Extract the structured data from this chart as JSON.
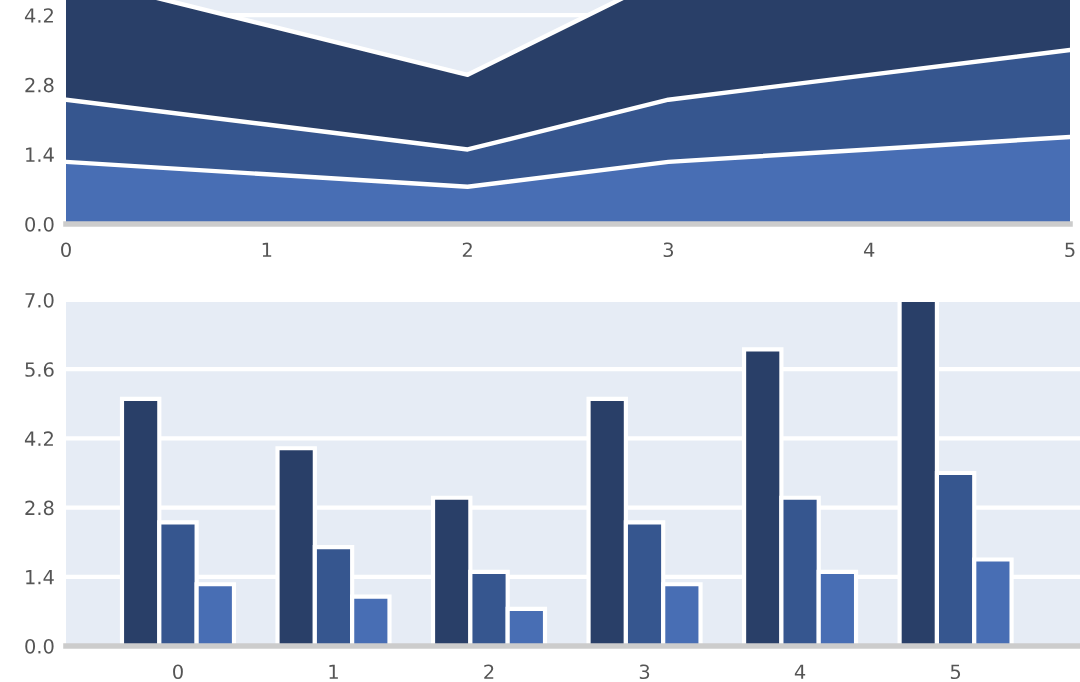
{
  "chart_data": [
    {
      "type": "area",
      "x": [
        0,
        1,
        2,
        3,
        4,
        5
      ],
      "xlim": [
        0,
        5
      ],
      "xticks": [
        0,
        1,
        2,
        3,
        4,
        5
      ],
      "ylim": [
        0,
        7
      ],
      "yticks": [
        {
          "value": 0,
          "label": "0.0"
        },
        {
          "value": 1.4,
          "label": "1.4"
        },
        {
          "value": 2.8,
          "label": "2.8"
        },
        {
          "value": 4.2,
          "label": "4.2"
        }
      ],
      "grid": "y",
      "series": [
        {
          "color": "#293f68",
          "values": [
            5,
            4,
            3,
            5,
            6,
            7
          ]
        },
        {
          "color": "#36568f",
          "values": [
            2.5,
            2,
            1.5,
            2.5,
            3,
            3.5
          ]
        },
        {
          "color": "#486eb4",
          "values": [
            1.25,
            1,
            0.75,
            1.25,
            1.5,
            1.75
          ]
        }
      ]
    },
    {
      "type": "bar",
      "categories": [
        "0",
        "1",
        "2",
        "3",
        "4",
        "5"
      ],
      "ylim": [
        0,
        7
      ],
      "yticks": [
        {
          "value": 0,
          "label": "0.0"
        },
        {
          "value": 1.4,
          "label": "1.4"
        },
        {
          "value": 2.8,
          "label": "2.8"
        },
        {
          "value": 4.2,
          "label": "4.2"
        },
        {
          "value": 5.6,
          "label": "5.6"
        },
        {
          "value": 7,
          "label": "7.0"
        }
      ],
      "grid": "y",
      "series": [
        {
          "color": "#293f68",
          "values": [
            5,
            4,
            3,
            5,
            6,
            7
          ]
        },
        {
          "color": "#36568f",
          "values": [
            2.5,
            2,
            1.5,
            2.5,
            3,
            3.5
          ]
        },
        {
          "color": "#486eb4",
          "values": [
            1.25,
            1,
            0.75,
            1.25,
            1.5,
            1.75
          ]
        }
      ]
    }
  ]
}
